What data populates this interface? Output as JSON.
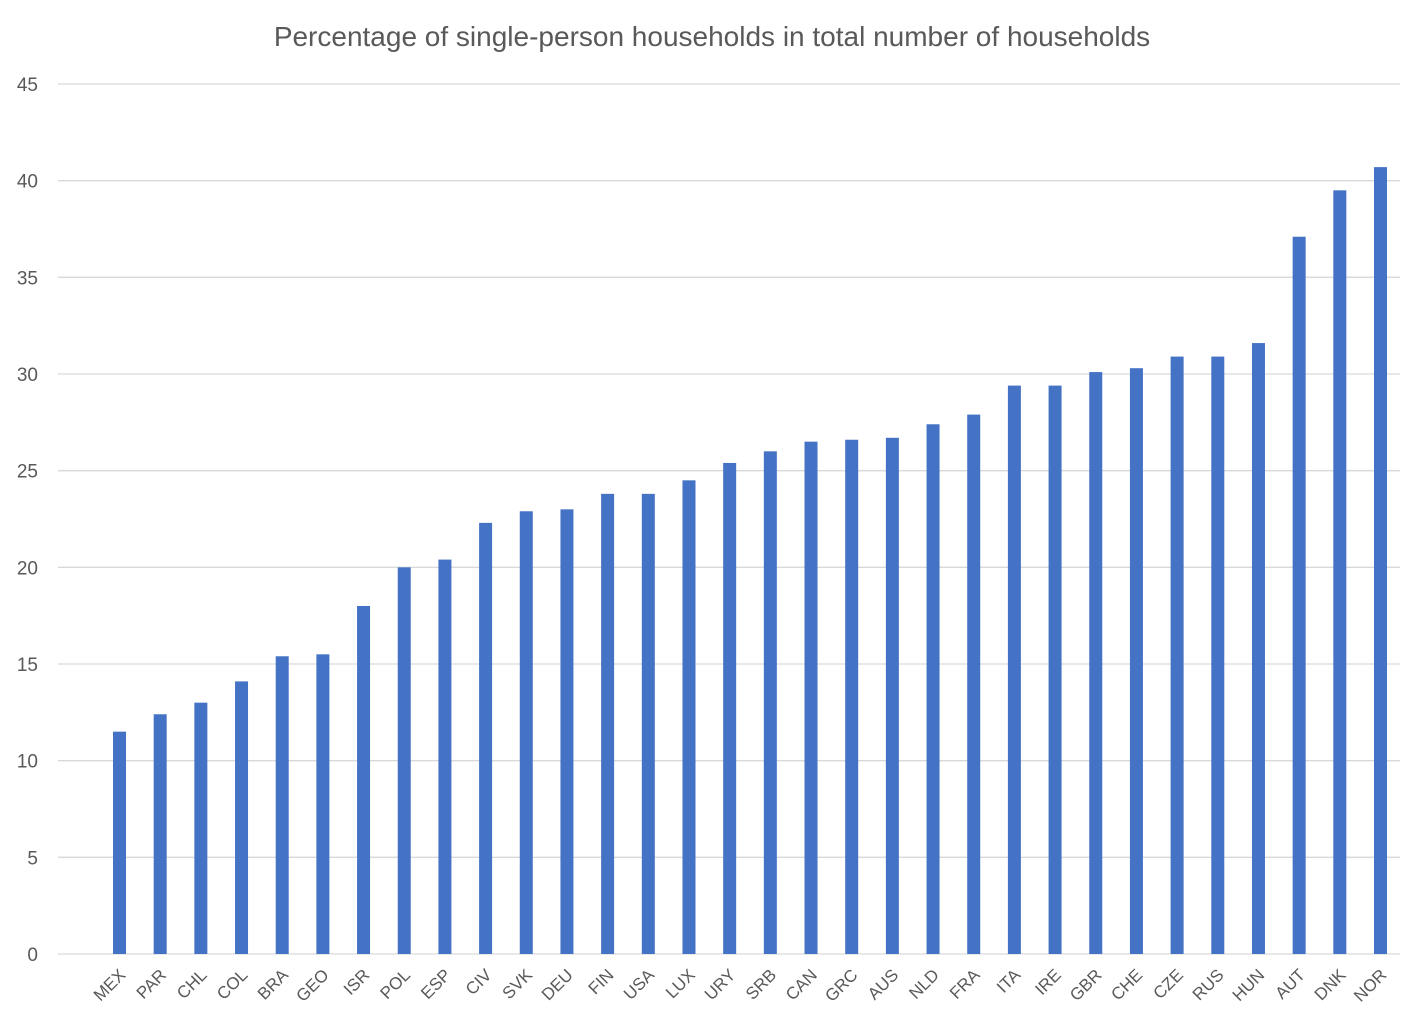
{
  "chart_data": {
    "type": "bar",
    "title": "Percentage of single-person households in total number of households",
    "xlabel": "",
    "ylabel": "",
    "ylim": [
      0,
      45
    ],
    "yticks": [
      0,
      5,
      10,
      15,
      20,
      25,
      30,
      35,
      40,
      45
    ],
    "grid": true,
    "legend": "none",
    "bar_color": "#4472C4",
    "categories": [
      "MEX",
      "PAR",
      "CHL",
      "COL",
      "BRA",
      "GEO",
      "ISR",
      "POL",
      "ESP",
      "CIV",
      "SVK",
      "DEU",
      "FIN",
      "USA",
      "LUX",
      "URY",
      "SRB",
      "CAN",
      "GRC",
      "AUS",
      "NLD",
      "FRA",
      "ITA",
      "IRE",
      "GBR",
      "CHE",
      "CZE",
      "RUS",
      "HUN",
      "AUT",
      "DNK",
      "NOR"
    ],
    "values": [
      11.5,
      12.4,
      13.0,
      14.1,
      15.4,
      15.5,
      18.0,
      20.0,
      20.4,
      22.3,
      22.9,
      23.0,
      23.8,
      23.8,
      24.5,
      25.4,
      26.0,
      26.5,
      26.6,
      26.7,
      27.4,
      27.9,
      29.4,
      29.4,
      30.1,
      30.3,
      30.9,
      30.9,
      31.6,
      37.1,
      39.5,
      40.7
    ]
  }
}
